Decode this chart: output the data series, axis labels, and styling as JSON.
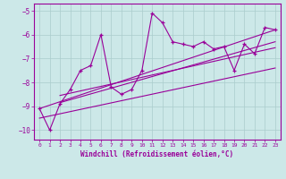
{
  "xlabel": "Windchill (Refroidissement éolien,°C)",
  "bg_color": "#cce8e8",
  "line_color": "#990099",
  "grid_color": "#aacccc",
  "xlim": [
    -0.5,
    23.5
  ],
  "ylim": [
    -10.4,
    -4.7
  ],
  "xticks": [
    0,
    1,
    2,
    3,
    4,
    5,
    6,
    7,
    8,
    9,
    10,
    11,
    12,
    13,
    14,
    15,
    16,
    17,
    18,
    19,
    20,
    21,
    22,
    23
  ],
  "yticks": [
    -10,
    -9,
    -8,
    -7,
    -6,
    -5
  ],
  "series1_x": [
    0,
    1,
    2,
    3,
    4,
    5,
    6,
    7,
    8,
    9,
    10,
    11,
    12,
    13,
    14,
    15,
    16,
    17,
    18,
    19,
    20,
    21,
    22,
    23
  ],
  "series1_y": [
    -9.1,
    -10.0,
    -8.9,
    -8.3,
    -7.5,
    -7.3,
    -6.0,
    -8.2,
    -8.5,
    -8.3,
    -7.5,
    -5.1,
    -5.5,
    -6.3,
    -6.4,
    -6.5,
    -6.3,
    -6.6,
    -6.5,
    -7.5,
    -6.4,
    -6.8,
    -5.7,
    -5.8
  ],
  "tline1_x": [
    0,
    23
  ],
  "tline1_y": [
    -9.1,
    -5.8
  ],
  "tline2_x": [
    2,
    23
  ],
  "tline2_y": [
    -8.85,
    -6.3
  ],
  "tline3_x": [
    2,
    23
  ],
  "tline3_y": [
    -8.55,
    -6.55
  ],
  "tline4_x": [
    0,
    23
  ],
  "tline4_y": [
    -9.5,
    -7.4
  ]
}
